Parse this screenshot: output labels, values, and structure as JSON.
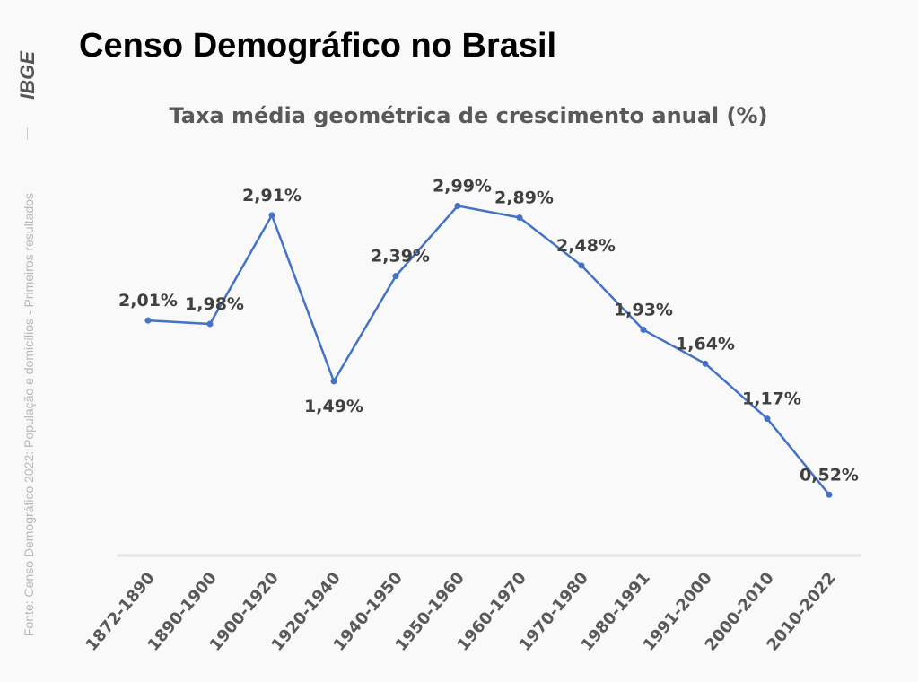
{
  "header": {
    "title": "Censo Demográfico no Brasil"
  },
  "sidebar": {
    "logo_text": "IBGE",
    "source": "Fonte: Censo Demográfico 2022: População e domicílios - Primeiros resultados"
  },
  "chart_data": {
    "type": "line",
    "title": "Taxa média geométrica de crescimento anual (%)",
    "xlabel": "",
    "ylabel": "",
    "categories": [
      "1872-1890",
      "1890-1900",
      "1900-1920",
      "1920-1940",
      "1940-1950",
      "1950-1960",
      "1960-1970",
      "1970-1980",
      "1980-1991",
      "1991-2000",
      "2000-2010",
      "2010-2022"
    ],
    "values": [
      2.01,
      1.98,
      2.91,
      1.49,
      2.39,
      2.99,
      2.89,
      2.48,
      1.93,
      1.64,
      1.17,
      0.52
    ],
    "data_labels": [
      "2,01%",
      "1,98%",
      "2,91%",
      "1,49%",
      "2,39%",
      "2,99%",
      "2,89%",
      "2,48%",
      "1,93%",
      "1,64%",
      "1,17%",
      "0,52%"
    ],
    "ylim": [
      0,
      3.5
    ],
    "grid": false,
    "legend": "none",
    "line_color": "#4472c4",
    "label_color": "#404040"
  }
}
